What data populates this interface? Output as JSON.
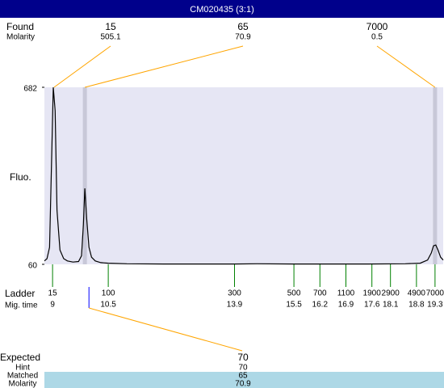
{
  "header": {
    "title": "CM020435 (3:1)"
  },
  "found": {
    "label": "Found",
    "molarity_label": "Molarity",
    "peaks": [
      {
        "size": 15,
        "molarity": 505.1,
        "time": 9.04
      },
      {
        "size": 65,
        "molarity": 70.9,
        "time": 9.87
      },
      {
        "size": 7000,
        "molarity": 0.5,
        "time": 19.3
      }
    ]
  },
  "chart_data": {
    "type": "line",
    "y_label": "Fluo.",
    "color": "#000000",
    "x": [
      8.78,
      8.85,
      8.92,
      8.97,
      9.02,
      9.07,
      9.12,
      9.2,
      9.3,
      9.4,
      9.55,
      9.7,
      9.78,
      9.83,
      9.87,
      9.92,
      9.98,
      10.05,
      10.15,
      10.3,
      10.5,
      11,
      12,
      13,
      13.9,
      14.5,
      15.5,
      16.5,
      17.5,
      18.5,
      18.9,
      19.1,
      19.2,
      19.26,
      19.32,
      19.38,
      19.45,
      19.52
    ],
    "values": [
      72,
      80,
      120,
      400,
      682,
      600,
      250,
      110,
      80,
      72,
      68,
      70,
      90,
      200,
      327,
      220,
      120,
      85,
      72,
      66,
      64,
      62,
      61,
      61,
      61,
      62,
      61,
      61,
      61,
      62,
      64,
      75,
      100,
      125,
      128,
      110,
      85,
      75
    ],
    "xlim": [
      8.78,
      19.52
    ],
    "ylim": [
      60,
      682
    ],
    "yticks": [
      60,
      682
    ],
    "ladder": {
      "label": "Ladder",
      "time_label": "Mig. time",
      "sizes": [
        15,
        100,
        300,
        500,
        700,
        1100,
        1900,
        2900,
        4900,
        7000
      ],
      "times": [
        9,
        10.5,
        13.9,
        15.5,
        16.2,
        16.9,
        17.6,
        18.1,
        18.8,
        19.3
      ]
    }
  },
  "expected": {
    "label": "Expected",
    "value": 70,
    "time": 9.98,
    "hint": {
      "label": "Hint",
      "value": 70
    },
    "matched": {
      "label": "Matched",
      "value": 65
    },
    "molarity": {
      "label": "Molarity",
      "value": 70.9
    }
  }
}
